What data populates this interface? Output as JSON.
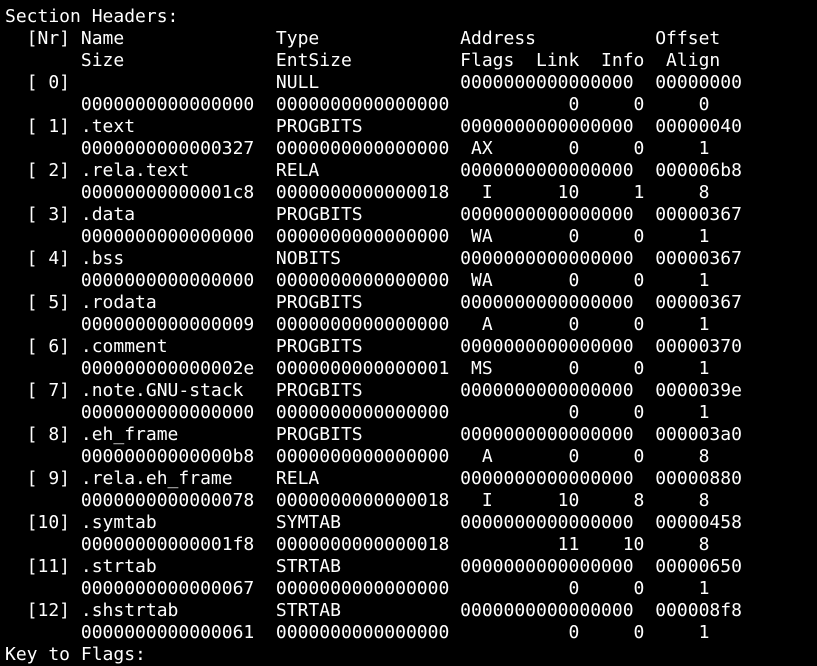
{
  "terminal": {
    "lines": [
      "Section Headers:",
      "  [Nr] Name              Type             Address           Offset",
      "       Size              EntSize          Flags  Link  Info  Align",
      "  [ 0]                   NULL             0000000000000000  00000000",
      "       0000000000000000  0000000000000000           0     0     0",
      "  [ 1] .text             PROGBITS         0000000000000000  00000040",
      "       0000000000000327  0000000000000000  AX       0     0     1",
      "  [ 2] .rela.text        RELA             0000000000000000  000006b8",
      "       00000000000001c8  0000000000000018   I      10     1     8",
      "  [ 3] .data             PROGBITS         0000000000000000  00000367",
      "       0000000000000000  0000000000000000  WA       0     0     1",
      "  [ 4] .bss              NOBITS           0000000000000000  00000367",
      "       0000000000000000  0000000000000000  WA       0     0     1",
      "  [ 5] .rodata           PROGBITS         0000000000000000  00000367",
      "       0000000000000009  0000000000000000   A       0     0     1",
      "  [ 6] .comment          PROGBITS         0000000000000000  00000370",
      "       000000000000002e  0000000000000001  MS       0     0     1",
      "  [ 7] .note.GNU-stack   PROGBITS         0000000000000000  0000039e",
      "       0000000000000000  0000000000000000           0     0     1",
      "  [ 8] .eh_frame         PROGBITS         0000000000000000  000003a0",
      "       00000000000000b8  0000000000000000   A       0     0     8",
      "  [ 9] .rela.eh_frame    RELA             0000000000000000  00000880",
      "       0000000000000078  0000000000000018   I      10     8     8",
      "  [10] .symtab           SYMTAB           0000000000000000  00000458",
      "       00000000000001f8  0000000000000018          11    10     8",
      "  [11] .strtab           STRTAB           0000000000000000  00000650",
      "       0000000000000067  0000000000000000           0     0     1",
      "  [12] .shstrtab         STRTAB           0000000000000000  000008f8",
      "       0000000000000061  0000000000000000           0     0     1",
      "Key to Flags:"
    ]
  }
}
